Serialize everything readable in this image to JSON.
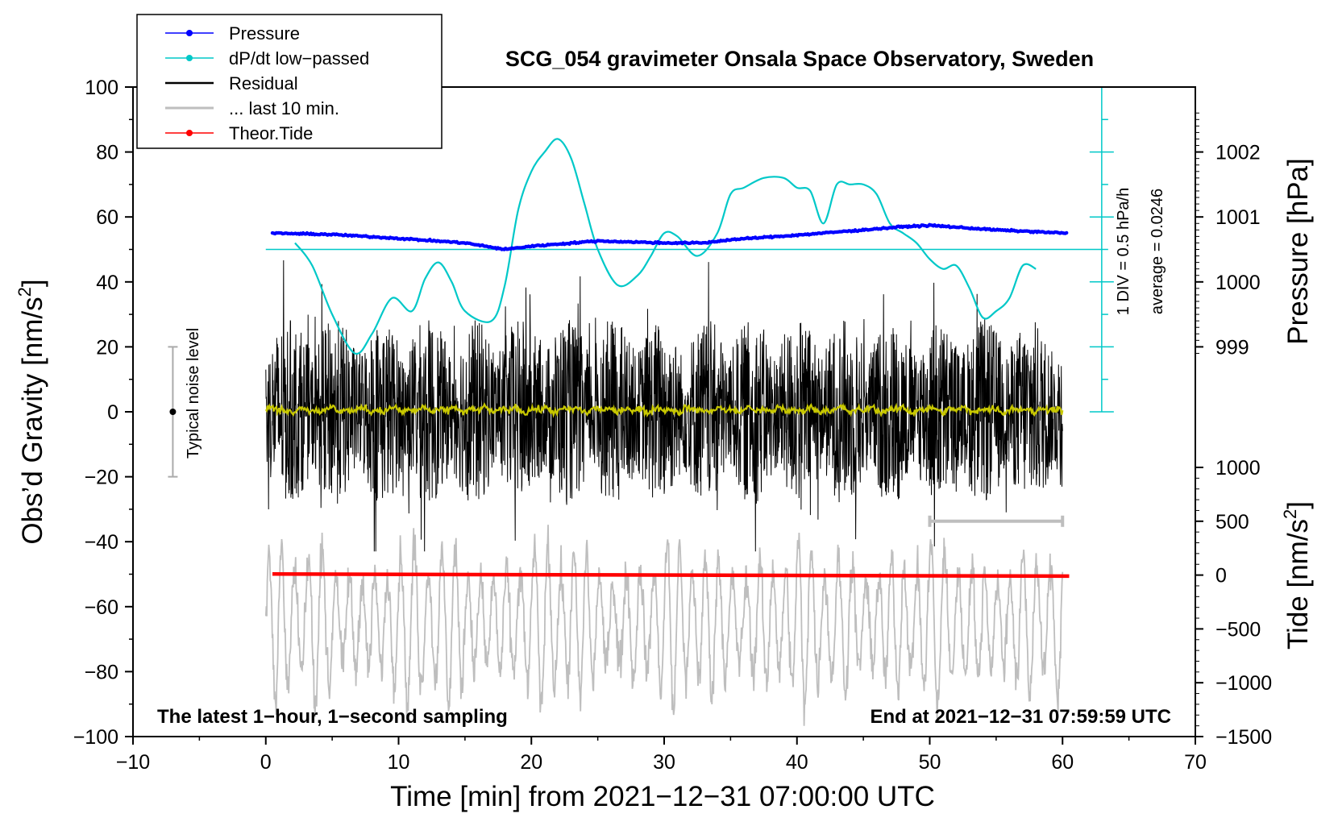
{
  "chart_data": {
    "type": "line",
    "title": "SCG_054 gravimeter Onsala Space Observatory, Sweden",
    "xlabel": "Time [min] from 2021−12−31 07:00:00 UTC",
    "ylabel_left": "Obs’d Gravity [nm/s",
    "ylabel_left_sup": "2",
    "ylabel_left_close": "]",
    "ylabel_right_pressure": "Pressure [hPa]",
    "ylabel_right_tide": "Tide [nm/s",
    "ylabel_right_tide_sup": "2",
    "ylabel_right_tide_close": "]",
    "xlim": [
      -10,
      70
    ],
    "ylim_gravity": [
      -100,
      100
    ],
    "ylim_tide": [
      -1500,
      1000
    ],
    "xticks": [
      -10,
      0,
      10,
      20,
      30,
      40,
      50,
      60,
      70
    ],
    "xtick_labels": [
      "−10",
      "0",
      "10",
      "20",
      "30",
      "40",
      "50",
      "60",
      "70"
    ],
    "yticks_gravity": [
      100,
      80,
      60,
      40,
      20,
      0,
      -20,
      -40,
      -60,
      -80,
      -100
    ],
    "ytick_labels_gravity": [
      "100",
      "80",
      "60",
      "40",
      "20",
      "0",
      "−20",
      "−40",
      "−60",
      "−80",
      "−100"
    ],
    "pressure_ticks": [
      1002,
      1001,
      1000,
      999
    ],
    "pressure_tick_labels": [
      "1002",
      "1001",
      "1000",
      "999"
    ],
    "pressure_hpa_per_gravity_unit": 0.05,
    "pressure_ref": {
      "hpa": 1000,
      "gravity": 40
    },
    "tide_ticks": [
      1000,
      500,
      0,
      -500,
      -1000,
      -1500
    ],
    "tide_tick_labels": [
      "1000",
      "500",
      "0",
      "−500",
      "−1000",
      "−1500"
    ],
    "annotation_left": "The latest 1−hour, 1−second sampling",
    "annotation_right": "End at 2021−12−31 07:59:59 UTC",
    "noise_label": "Typical noise level",
    "noise_bar": {
      "x": -7,
      "y": 0,
      "ylow": -20,
      "yhigh": 20
    },
    "dpdt_scale_label": "1 DIV = 0.5 hPa/h",
    "dpdt_average_label": "average = 0.0246",
    "dpdt_scale_axis": {
      "x": 62.95,
      "zero": 50,
      "ybottom": 0,
      "ytop": 100,
      "major_step": 20,
      "minor_step": 10
    },
    "last10_bar": {
      "x_start": 50,
      "x_end": 60,
      "tide_value": 500
    },
    "legend": [
      {
        "label": "Pressure",
        "color": "#0000ff",
        "marker": true
      },
      {
        "label": "dP/dt low−passed",
        "color": "#00c8c8",
        "marker": true
      },
      {
        "label": "Residual",
        "color": "#000000",
        "marker": false
      },
      {
        "label": "... last 10 min.",
        "color": "#bebebe",
        "marker": false
      },
      {
        "label": "Theor.Tide",
        "color": "#ff0000",
        "marker": true
      }
    ],
    "series": [
      {
        "name": "Pressure",
        "color": "#0000ff",
        "axis": "pressure_hpa",
        "x": [
          0.5,
          5,
          10,
          15,
          18,
          20,
          25,
          30,
          33,
          35,
          40,
          45,
          48,
          50,
          55,
          60.3
        ],
        "y": [
          1000.75,
          1000.73,
          1000.67,
          1000.6,
          1000.5,
          1000.55,
          1000.63,
          1000.6,
          1000.6,
          1000.65,
          1000.72,
          1000.8,
          1000.85,
          1000.87,
          1000.8,
          1000.75
        ]
      },
      {
        "name": "dP/dt low−passed",
        "color": "#00c8c8",
        "axis": "gravity",
        "x": [
          2.2,
          3.5,
          5,
          6.7,
          8,
          9.5,
          11,
          12,
          13,
          14,
          15,
          17,
          18,
          19,
          20,
          21,
          22,
          23,
          24,
          25,
          26.5,
          28,
          29,
          30,
          31,
          32.5,
          34,
          35,
          36,
          37.5,
          39,
          40,
          41,
          42,
          43,
          44,
          45,
          46,
          47,
          48,
          49,
          50,
          51,
          52,
          53,
          54,
          55,
          56,
          57,
          58
        ],
        "y": [
          52,
          45,
          30,
          18,
          24,
          35,
          31,
          41,
          46,
          40,
          31,
          28,
          39,
          62,
          74,
          80,
          84,
          78,
          64,
          50,
          39,
          42,
          48,
          55,
          54,
          48,
          55,
          67,
          69,
          72,
          72,
          69,
          68,
          58,
          70,
          70,
          70,
          67,
          58,
          55,
          52,
          47,
          44,
          45,
          38,
          29,
          31,
          35,
          45,
          44
        ]
      },
      {
        "name": "Residual",
        "color": "#000000",
        "axis": "gravity",
        "x_range": [
          0,
          60
        ],
        "y_min": -43,
        "y_max": 49,
        "typical_amplitude": 25
      },
      {
        "name": "Residual smoothed",
        "color": "#c8c800",
        "axis": "gravity",
        "x_range": [
          0,
          60
        ],
        "y_min": -1,
        "y_max": 3
      },
      {
        "name": "... last 10 min.",
        "color": "#bebebe",
        "axis": "gravity",
        "x_range": [
          0,
          60
        ],
        "y_min": -100,
        "y_max": -30
      },
      {
        "name": "Theor.Tide",
        "color": "#ff0000",
        "axis": "tide",
        "x": [
          0.5,
          60.5
        ],
        "y": [
          10,
          -10
        ]
      }
    ]
  }
}
